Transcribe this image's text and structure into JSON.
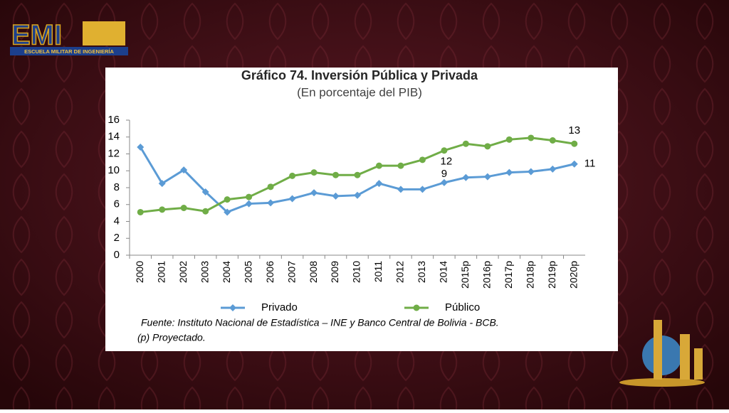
{
  "logo": {
    "title": "EMI",
    "subtitle": "ESCUELA MILITAR DE INGENIERÍA"
  },
  "chart_data": {
    "type": "line",
    "title": "Gráfico 74. Inversión Pública y Privada",
    "subtitle": "(En porcentaje del PIB)",
    "categories": [
      "2000",
      "2001",
      "2002",
      "2003",
      "2004",
      "2005",
      "2006",
      "2007",
      "2008",
      "2009",
      "2010",
      "2011",
      "2012",
      "2013",
      "2014",
      "2015p",
      "2016p",
      "2017p",
      "2018p",
      "2019p",
      "2020p"
    ],
    "series": [
      {
        "name": "Privado",
        "color": "#5b9bd5",
        "marker": "diamond",
        "values": [
          12.8,
          8.5,
          10.1,
          7.5,
          5.1,
          6.1,
          6.2,
          6.7,
          7.4,
          7.0,
          7.1,
          8.5,
          7.8,
          7.8,
          8.6,
          9.2,
          9.3,
          9.8,
          9.9,
          10.2,
          10.8
        ],
        "value_labels": [
          null,
          null,
          null,
          null,
          null,
          null,
          null,
          null,
          null,
          null,
          null,
          null,
          null,
          null,
          "9",
          null,
          null,
          null,
          null,
          null,
          "11"
        ]
      },
      {
        "name": "Público",
        "color": "#70ad47",
        "marker": "circle",
        "values": [
          5.1,
          5.4,
          5.6,
          5.2,
          6.6,
          6.9,
          8.1,
          9.4,
          9.8,
          9.5,
          9.5,
          10.6,
          10.6,
          11.3,
          12.4,
          13.2,
          12.9,
          13.7,
          13.9,
          13.6,
          13.2
        ],
        "value_labels": [
          null,
          null,
          null,
          null,
          null,
          null,
          null,
          null,
          null,
          null,
          null,
          null,
          null,
          null,
          "12",
          null,
          null,
          null,
          null,
          null,
          "13"
        ]
      }
    ],
    "ylim": [
      0,
      16
    ],
    "yticks": [
      0,
      2,
      4,
      6,
      8,
      10,
      12,
      14,
      16
    ],
    "grid": false,
    "legend": "bottom",
    "notes": [
      "Fuente: Instituto Nacional de Estadística – INE y Banco Central de Bolivia - BCB.",
      "(p) Proyectado."
    ]
  }
}
